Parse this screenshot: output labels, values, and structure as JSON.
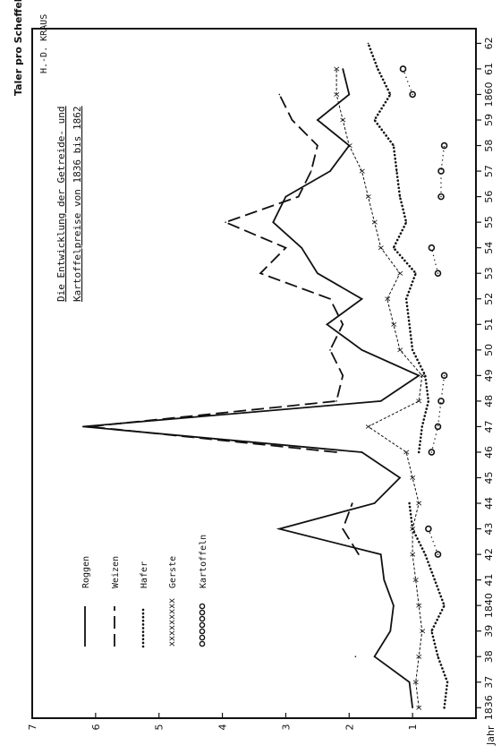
{
  "chart_data": {
    "type": "line",
    "orientation": "rotated-90-ccw",
    "title_line1": "Die Entwicklung der Getreide- und",
    "title_line2": "Kartoffelpreise von 1836 bis 1862",
    "ylabel": "Taler pro Scheffel",
    "xlabel": "Jahr",
    "signature": "H.-D. KRAUS",
    "x_tick_labels": [
      "1836",
      "37",
      "38",
      "39",
      "1840",
      "41",
      "42",
      "43",
      "44",
      "45",
      "46",
      "47",
      "48",
      "49",
      "50",
      "51",
      "52",
      "53",
      "54",
      "55",
      "56",
      "57",
      "58",
      "59",
      "1860",
      "61",
      "62"
    ],
    "y_tick_labels": [
      "1",
      "2",
      "3",
      "4",
      "5",
      "6",
      "7"
    ],
    "x": [
      1836,
      1837,
      1838,
      1839,
      1840,
      1841,
      1842,
      1843,
      1844,
      1845,
      1846,
      1847,
      1848,
      1849,
      1850,
      1851,
      1852,
      1853,
      1854,
      1855,
      1856,
      1857,
      1858,
      1859,
      1860,
      1861,
      1862
    ],
    "ylim": [
      0,
      7
    ],
    "xlim": [
      1835.8,
      1862.4
    ],
    "legend": [
      "Roggen",
      "Weizen",
      "Hafer",
      "Gerste",
      "Kartoffeln"
    ],
    "series": [
      {
        "name": "Roggen",
        "style": "solid",
        "values": [
          1.0,
          1.05,
          1.6,
          1.35,
          1.3,
          1.45,
          1.5,
          3.1,
          1.6,
          1.2,
          1.8,
          6.2,
          1.5,
          0.9,
          1.8,
          2.35,
          1.8,
          2.5,
          2.75,
          3.2,
          3.0,
          2.3,
          2.0,
          2.5,
          2.0,
          2.1,
          null
        ]
      },
      {
        "name": "Weizen",
        "style": "dashed",
        "values": [
          null,
          null,
          1.9,
          null,
          null,
          null,
          1.85,
          2.1,
          1.95,
          null,
          2.2,
          6.1,
          2.2,
          2.1,
          2.3,
          2.1,
          2.3,
          3.4,
          3.0,
          3.95,
          2.8,
          2.6,
          2.5,
          2.9,
          3.1,
          null,
          null
        ]
      },
      {
        "name": "Hafer",
        "style": "dotted",
        "values": [
          0.5,
          0.45,
          0.6,
          0.7,
          0.5,
          0.65,
          0.8,
          1.0,
          1.05,
          null,
          0.9,
          0.85,
          0.75,
          0.8,
          1.0,
          1.05,
          1.1,
          0.95,
          1.3,
          1.1,
          1.2,
          1.25,
          1.3,
          1.6,
          1.35,
          1.55,
          1.7
        ]
      },
      {
        "name": "Gerste",
        "style": "cross",
        "values": [
          0.9,
          0.95,
          0.9,
          0.85,
          0.9,
          0.95,
          1.0,
          1.0,
          0.9,
          1.0,
          1.1,
          1.7,
          0.9,
          0.85,
          1.2,
          1.3,
          1.4,
          1.2,
          1.5,
          1.6,
          1.7,
          1.8,
          2.0,
          2.1,
          2.2,
          2.2,
          null
        ]
      },
      {
        "name": "Kartoffeln",
        "style": "circle",
        "values": [
          null,
          null,
          null,
          null,
          null,
          null,
          0.6,
          0.75,
          null,
          null,
          0.7,
          0.6,
          0.55,
          0.5,
          null,
          null,
          null,
          0.6,
          0.7,
          null,
          0.55,
          0.55,
          0.5,
          null,
          1.0,
          1.15,
          null
        ]
      }
    ]
  }
}
